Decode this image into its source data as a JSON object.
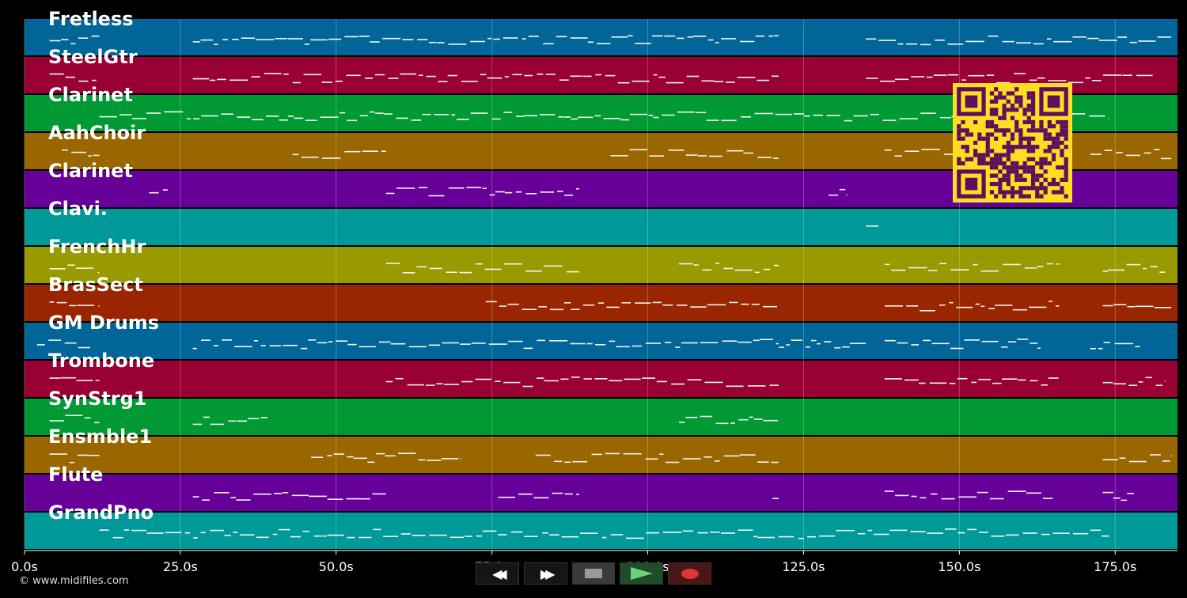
{
  "timeline": {
    "max_seconds": 185,
    "ticks": [
      {
        "value": 0,
        "label": "0.0s"
      },
      {
        "value": 25,
        "label": "25.0s"
      },
      {
        "value": 50,
        "label": "50.0s"
      },
      {
        "value": 75,
        "label": "75.0s"
      },
      {
        "value": 100,
        "label": "100.0s"
      },
      {
        "value": 125,
        "label": "125.0s"
      },
      {
        "value": 150,
        "label": "150.0s"
      },
      {
        "value": 175,
        "label": "175.0s"
      }
    ]
  },
  "tracks": [
    {
      "name": "Fretless",
      "color": "#006699",
      "segments": [
        [
          4,
          12
        ],
        [
          27,
          121
        ],
        [
          135,
          184
        ]
      ]
    },
    {
      "name": "SteelGtr",
      "color": "#990033",
      "segments": [
        [
          4,
          12
        ],
        [
          27,
          121
        ],
        [
          135,
          181
        ]
      ]
    },
    {
      "name": "Clarinet",
      "color": "#009933",
      "segments": [
        [
          12,
          174
        ]
      ]
    },
    {
      "name": "AahChoir",
      "color": "#996600",
      "segments": [
        [
          6,
          12
        ],
        [
          43,
          58
        ],
        [
          94,
          121
        ],
        [
          138,
          157
        ],
        [
          171,
          184
        ]
      ]
    },
    {
      "name": "Clarinet",
      "color": "#660099",
      "segments": [
        [
          20,
          23
        ],
        [
          58,
          89
        ],
        [
          129,
          132
        ]
      ]
    },
    {
      "name": "Clavi.",
      "color": "#009999",
      "segments": [
        [
          135,
          137
        ]
      ]
    },
    {
      "name": "FrenchHr",
      "color": "#999900",
      "segments": [
        [
          4,
          12
        ],
        [
          58,
          89
        ],
        [
          105,
          121
        ],
        [
          138,
          166
        ],
        [
          173,
          183
        ]
      ]
    },
    {
      "name": "BrasSect",
      "color": "#992600",
      "segments": [
        [
          4,
          12
        ],
        [
          74,
          121
        ],
        [
          138,
          166
        ],
        [
          173,
          184
        ]
      ]
    },
    {
      "name": "GM Drums",
      "color": "#006699",
      "segments": [
        [
          2,
          11
        ],
        [
          27,
          121
        ],
        [
          121,
          135
        ],
        [
          138,
          163
        ],
        [
          171,
          179
        ]
      ]
    },
    {
      "name": "Trombone",
      "color": "#990033",
      "segments": [
        [
          4,
          12
        ],
        [
          58,
          121
        ],
        [
          138,
          166
        ],
        [
          173,
          183
        ]
      ]
    },
    {
      "name": "SynStrg1",
      "color": "#009933",
      "segments": [
        [
          4,
          12
        ],
        [
          27,
          39
        ],
        [
          105,
          121
        ]
      ]
    },
    {
      "name": "Ensmble1",
      "color": "#996600",
      "segments": [
        [
          4,
          12
        ],
        [
          46,
          70
        ],
        [
          82,
          121
        ],
        [
          173,
          184
        ]
      ]
    },
    {
      "name": "Flute",
      "color": "#660099",
      "segments": [
        [
          27,
          58
        ],
        [
          76,
          89
        ],
        [
          120,
          121
        ],
        [
          138,
          165
        ],
        [
          173,
          178
        ]
      ]
    },
    {
      "name": "GrandPno",
      "color": "#009999",
      "segments": [
        [
          12,
          174
        ]
      ]
    }
  ],
  "transport": {
    "rewind_glyph": "◀◀",
    "forward_glyph": "▶▶"
  },
  "footer": {
    "copyright": "© www.midifiles.com"
  },
  "colors": {
    "background": "#000000",
    "qr_fg": "#5c0f5c",
    "qr_bg": "#ffdd22"
  }
}
